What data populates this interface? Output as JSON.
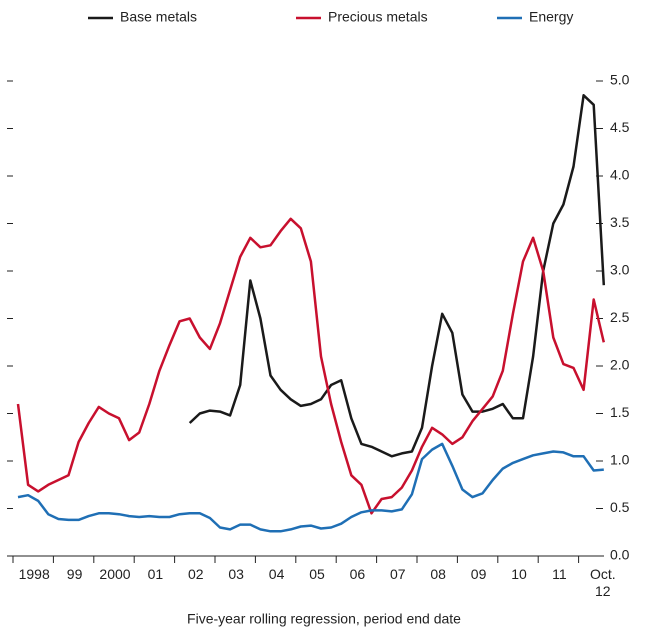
{
  "chart_data": {
    "type": "line",
    "x_label": "Five-year rolling regression, period end date",
    "categories": [
      null,
      null,
      "1998",
      null,
      null,
      null,
      "99",
      null,
      null,
      null,
      "2000",
      null,
      null,
      null,
      "01",
      null,
      null,
      null,
      "02",
      null,
      null,
      null,
      "03",
      null,
      null,
      null,
      "04",
      null,
      null,
      null,
      "05",
      null,
      null,
      null,
      "06",
      null,
      null,
      null,
      "07",
      null,
      null,
      null,
      "08",
      null,
      null,
      null,
      "09",
      null,
      null,
      null,
      "10",
      null,
      null,
      null,
      "11",
      null,
      null,
      null,
      "Oct. 12"
    ],
    "series": [
      {
        "name": "Base metals",
        "color": "#1a1a1a",
        "values": [
          null,
          null,
          null,
          null,
          null,
          null,
          null,
          null,
          null,
          null,
          null,
          null,
          null,
          null,
          null,
          null,
          null,
          1.4,
          1.5,
          1.53,
          1.52,
          1.48,
          1.8,
          2.9,
          2.5,
          1.9,
          1.75,
          1.65,
          1.58,
          1.6,
          1.65,
          1.8,
          1.85,
          1.45,
          1.18,
          1.15,
          1.1,
          1.05,
          1.08,
          1.1,
          1.35,
          2.0,
          2.55,
          2.35,
          1.7,
          1.52,
          1.52,
          1.55,
          1.6,
          1.45,
          1.45,
          2.1,
          3.0,
          3.5,
          3.7,
          4.1,
          4.85,
          4.75,
          2.85
        ]
      },
      {
        "name": "Precious metals",
        "color": "#c8102e",
        "values": [
          1.6,
          0.75,
          0.68,
          0.75,
          0.8,
          0.85,
          1.2,
          1.4,
          1.57,
          1.5,
          1.45,
          1.22,
          1.3,
          1.6,
          1.95,
          2.22,
          2.47,
          2.5,
          2.3,
          2.18,
          2.45,
          2.8,
          3.15,
          3.35,
          3.25,
          3.27,
          3.42,
          3.55,
          3.45,
          3.1,
          2.1,
          1.6,
          1.2,
          0.85,
          0.75,
          0.45,
          0.6,
          0.62,
          0.72,
          0.9,
          1.15,
          1.35,
          1.28,
          1.18,
          1.25,
          1.42,
          1.55,
          1.68,
          1.95,
          2.55,
          3.1,
          3.35,
          3.0,
          2.3,
          2.02,
          1.98,
          1.75,
          2.7,
          2.25
        ]
      },
      {
        "name": "Energy",
        "color": "#1f6fb5",
        "values": [
          0.62,
          0.64,
          0.58,
          0.44,
          0.39,
          0.38,
          0.38,
          0.42,
          0.45,
          0.45,
          0.44,
          0.42,
          0.41,
          0.42,
          0.41,
          0.41,
          0.44,
          0.45,
          0.45,
          0.4,
          0.3,
          0.28,
          0.33,
          0.33,
          0.28,
          0.26,
          0.26,
          0.28,
          0.31,
          0.32,
          0.29,
          0.3,
          0.34,
          0.41,
          0.46,
          0.48,
          0.48,
          0.47,
          0.49,
          0.65,
          1.02,
          1.12,
          1.18,
          0.95,
          0.7,
          0.62,
          0.66,
          0.8,
          0.92,
          0.98,
          1.02,
          1.06,
          1.08,
          1.1,
          1.09,
          1.05,
          1.05,
          0.9,
          0.91
        ]
      }
    ],
    "ylim": [
      0,
      5
    ],
    "yticks": [
      {
        "value": 0,
        "label": "0.0"
      },
      0.5,
      {
        "value": 1,
        "label": "1.0"
      },
      1.5,
      {
        "value": 2,
        "label": "2.0"
      },
      2.5,
      {
        "value": 3,
        "label": "3.0"
      },
      3.5,
      {
        "value": 4,
        "label": "4.0"
      },
      4.5,
      {
        "value": 5,
        "label": "5.0"
      }
    ],
    "legend": "top"
  }
}
